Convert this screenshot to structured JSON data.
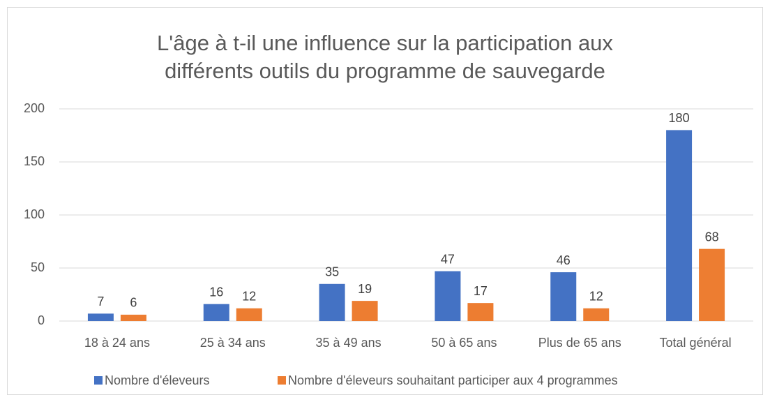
{
  "chart_data": {
    "type": "bar",
    "title": [
      "L'âge à t-il une influence sur la participation aux",
      "différents outils du programme de sauvegarde"
    ],
    "categories": [
      "18 à 24 ans",
      "25 à 34 ans",
      "35 à 49 ans",
      "50 à 65 ans",
      "Plus de 65 ans",
      "Total général"
    ],
    "series": [
      {
        "name": "Nombre d'éleveurs",
        "color": "#4472c4",
        "values": [
          7,
          16,
          35,
          47,
          46,
          180
        ]
      },
      {
        "name": "Nombre d'éleveurs souhaitant participer aux 4 programmes",
        "color": "#ed7d31",
        "values": [
          6,
          12,
          19,
          17,
          12,
          68
        ]
      }
    ],
    "ylim": [
      0,
      200
    ],
    "yticks": [
      0,
      50,
      100,
      150,
      200
    ],
    "grid": true,
    "legend": "bottom"
  }
}
